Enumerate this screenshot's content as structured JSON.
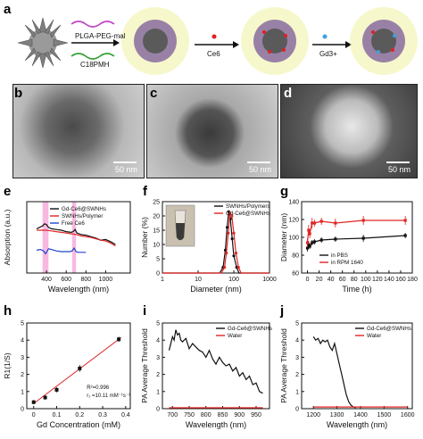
{
  "panel_labels": {
    "a": "a",
    "b": "b",
    "c": "c",
    "d": "d",
    "e": "e",
    "f": "f",
    "g": "g",
    "h": "h",
    "i": "i",
    "j": "j"
  },
  "schematic": {
    "reagent_top": "PLGA-PEG-mal",
    "reagent_bottom": "C18PMH",
    "step2": "Ce6",
    "step3": "Gd3+"
  },
  "micrographs": {
    "b_scale": "50 nm",
    "c_scale": "50 nm",
    "d_scale": "50 nm"
  },
  "colors": {
    "black": "#111111",
    "red": "#e02424",
    "blue": "#2244cc",
    "pink": "#f080c8"
  },
  "chart_data": [
    {
      "panel": "e",
      "type": "line",
      "xlabel": "Wavelength (nm)",
      "ylabel": "Absorption (a.u.)",
      "xlim": [
        200,
        1250
      ],
      "xticks": [
        400,
        600,
        800,
        1000
      ],
      "highlight_bands": [
        [
          360,
          420
        ],
        [
          660,
          700
        ]
      ],
      "legend": [
        "Gd-Ce6@SWNHs",
        "SWNHs/Polymer",
        "Free Ce6"
      ],
      "series": [
        {
          "name": "Gd-Ce6@SWNHs",
          "color": "#111111",
          "x": [
            300,
            330,
            360,
            380,
            400,
            420,
            450,
            500,
            550,
            600,
            650,
            670,
            690,
            710,
            750,
            800,
            850,
            900,
            950,
            1000,
            1050,
            1100
          ],
          "y": [
            0.62,
            0.64,
            0.66,
            0.69,
            0.68,
            0.64,
            0.62,
            0.61,
            0.6,
            0.58,
            0.57,
            0.58,
            0.61,
            0.56,
            0.54,
            0.53,
            0.51,
            0.49,
            0.46,
            0.47,
            0.44,
            0.4
          ]
        },
        {
          "name": "SWNHs/Polymer",
          "color": "#e02424",
          "x": [
            300,
            350,
            400,
            450,
            500,
            550,
            600,
            650,
            700,
            750,
            800,
            850,
            900,
            950,
            1000,
            1050,
            1100
          ],
          "y": [
            0.6,
            0.6,
            0.6,
            0.59,
            0.58,
            0.57,
            0.56,
            0.55,
            0.54,
            0.52,
            0.51,
            0.5,
            0.48,
            0.46,
            0.45,
            0.42,
            0.38
          ]
        },
        {
          "name": "Free Ce6",
          "color": "#2244cc",
          "x": [
            300,
            340,
            370,
            390,
            405,
            420,
            450,
            500,
            550,
            600,
            640,
            660,
            680,
            700,
            720,
            760,
            800
          ],
          "y": [
            0.32,
            0.33,
            0.31,
            0.27,
            0.3,
            0.34,
            0.33,
            0.31,
            0.3,
            0.3,
            0.3,
            0.31,
            0.35,
            0.3,
            0.29,
            0.29,
            0.29
          ]
        }
      ]
    },
    {
      "panel": "f",
      "type": "line",
      "xlabel": "Diameter (nm)",
      "ylabel": "Number (%)",
      "xscale": "log",
      "xlim": [
        1,
        1000
      ],
      "xticks": [
        1,
        10,
        100,
        1000
      ],
      "ylim": [
        0,
        25
      ],
      "yticks": [
        0,
        5,
        10,
        15,
        20,
        25
      ],
      "legend": [
        "SWNHs/Polymers",
        "Gd-Ce6@SWNHs"
      ],
      "series": [
        {
          "name": "SWNHs/Polymers",
          "color": "#111111",
          "x": [
            1,
            40,
            50,
            58,
            65,
            72,
            80,
            90,
            100,
            120,
            140,
            1000
          ],
          "y": [
            0,
            0,
            2,
            8,
            16,
            21.5,
            19,
            12,
            6,
            2,
            0,
            0
          ]
        },
        {
          "name": "Gd-Ce6@SWNHs",
          "color": "#e02424",
          "x": [
            1,
            45,
            55,
            62,
            70,
            78,
            88,
            100,
            115,
            135,
            160,
            1000
          ],
          "y": [
            0,
            0,
            2,
            7,
            14,
            21,
            20,
            14,
            7,
            2,
            0,
            0
          ]
        }
      ]
    },
    {
      "panel": "g",
      "type": "line",
      "xlabel": "Time (h)",
      "ylabel": "Diameter (nm)",
      "xlim": [
        -10,
        180
      ],
      "xticks": [
        0,
        20,
        40,
        60,
        80,
        100,
        120,
        140,
        160,
        180
      ],
      "ylim": [
        60,
        140
      ],
      "yticks": [
        60,
        80,
        100,
        120,
        140
      ],
      "legend": [
        "in PBS",
        "in RPM 1640"
      ],
      "series": [
        {
          "name": "in PBS",
          "color": "#111111",
          "x": [
            0,
            2,
            4,
            8,
            12,
            24,
            48,
            96,
            168
          ],
          "y": [
            88,
            92,
            90,
            94,
            95,
            97,
            98,
            99,
            102
          ],
          "err": [
            4,
            4,
            3,
            3,
            3,
            3,
            3,
            4,
            3
          ]
        },
        {
          "name": "in RPM 1640",
          "color": "#e02424",
          "x": [
            0,
            2,
            4,
            8,
            12,
            24,
            48,
            96,
            168
          ],
          "y": [
            94,
            108,
            104,
            116,
            116,
            118,
            116,
            119,
            119
          ],
          "err": [
            5,
            6,
            5,
            6,
            4,
            4,
            5,
            5,
            5
          ]
        }
      ]
    },
    {
      "panel": "h",
      "type": "scatter",
      "xlabel": "Gd Concentration (mM)",
      "ylabel": "R1(1/S)",
      "xlim": [
        -0.03,
        0.42
      ],
      "xticks": [
        0.0,
        0.1,
        0.2,
        0.3,
        0.4
      ],
      "ylim": [
        0,
        5
      ],
      "yticks": [
        0,
        1,
        2,
        3,
        4,
        5
      ],
      "annotations": [
        "R²=0.996",
        "r₁ =10.11 mM⁻¹s⁻¹"
      ],
      "points": {
        "x": [
          0.0,
          0.05,
          0.1,
          0.2,
          0.37
        ],
        "y": [
          0.38,
          0.65,
          1.1,
          2.35,
          4.05
        ],
        "err": [
          0.12,
          0.12,
          0.15,
          0.2,
          0.15
        ]
      },
      "fit": {
        "x": [
          0.0,
          0.38
        ],
        "y": [
          0.3,
          4.15
        ],
        "color": "#e02424"
      }
    },
    {
      "panel": "i",
      "type": "line",
      "xlabel": "Wavelength (nm)",
      "ylabel": "PA Average Threshold",
      "xlim": [
        670,
        990
      ],
      "xticks": [
        700,
        750,
        800,
        850,
        900,
        950
      ],
      "ylim": [
        0,
        5
      ],
      "yticks": [
        0,
        1,
        2,
        3,
        4,
        5
      ],
      "legend": [
        "Gd-Ce6@SWNHs",
        "Water"
      ],
      "series": [
        {
          "name": "Gd-Ce6@SWNHs",
          "color": "#111111",
          "x": [
            690,
            700,
            705,
            710,
            715,
            720,
            725,
            730,
            740,
            750,
            760,
            770,
            780,
            790,
            800,
            810,
            820,
            830,
            840,
            850,
            860,
            870,
            880,
            890,
            900,
            910,
            920,
            930,
            940,
            950,
            960,
            970
          ],
          "y": [
            3.4,
            4.2,
            4.0,
            4.6,
            4.3,
            4.4,
            4.0,
            3.9,
            4.1,
            3.5,
            3.8,
            3.6,
            3.4,
            3.3,
            3.0,
            3.4,
            2.9,
            2.6,
            3.0,
            2.7,
            2.5,
            2.6,
            2.2,
            2.4,
            1.9,
            2.1,
            1.7,
            1.9,
            1.4,
            1.5,
            1.0,
            0.9
          ]
        },
        {
          "name": "Water",
          "color": "#e02424",
          "x": [
            690,
            750,
            800,
            850,
            900,
            970
          ],
          "y": [
            0.05,
            0.05,
            0.05,
            0.05,
            0.05,
            0.05
          ]
        }
      ]
    },
    {
      "panel": "j",
      "type": "line",
      "xlabel": "Wavelength (nm)",
      "ylabel": "PA Average Threshold",
      "xlim": [
        1150,
        1620
      ],
      "xticks": [
        1200,
        1300,
        1400,
        1500,
        1600
      ],
      "ylim": [
        0,
        5
      ],
      "yticks": [
        0,
        1,
        2,
        3,
        4,
        5
      ],
      "legend": [
        "Gd-Ce6@SWNHs",
        "Water"
      ],
      "series": [
        {
          "name": "Gd-Ce6@SWNHs",
          "color": "#111111",
          "x": [
            1200,
            1210,
            1220,
            1230,
            1240,
            1250,
            1260,
            1270,
            1280,
            1290,
            1300,
            1310,
            1320,
            1330,
            1340,
            1350,
            1360,
            1370,
            1380
          ],
          "y": [
            4.2,
            4.0,
            4.1,
            3.8,
            4.0,
            3.9,
            4.0,
            3.6,
            3.4,
            3.8,
            3.2,
            2.6,
            2.0,
            1.4,
            0.8,
            0.4,
            0.2,
            0.1,
            0.05
          ]
        },
        {
          "name": "Water",
          "color": "#e02424",
          "x": [
            1200,
            1300,
            1400,
            1500,
            1600
          ],
          "y": [
            0.1,
            0.1,
            0.1,
            0.1,
            0.1
          ]
        }
      ]
    }
  ]
}
